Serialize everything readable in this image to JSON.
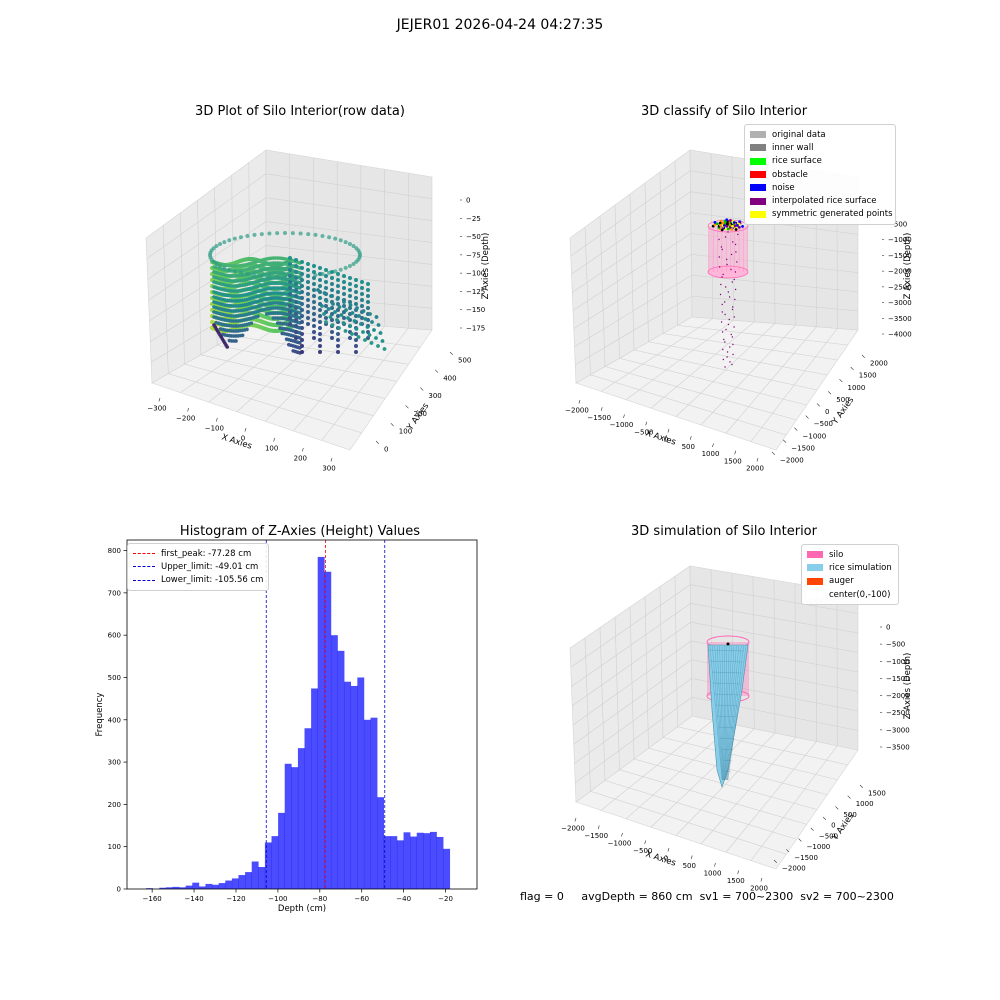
{
  "suptitle": "JEJER01 2026-04-24 04:27:35",
  "panels": {
    "raw": {
      "title": "3D Plot of Silo Interior(row data)",
      "xlabel": "X Axies",
      "ylabel": "Y Axies",
      "zlabel": "Z Axies (Depth)",
      "xticks": [
        "−300",
        "−200",
        "−100",
        "0",
        "100",
        "200",
        "300"
      ],
      "yticks": [
        "0",
        "100",
        "200",
        "300",
        "400",
        "500"
      ],
      "zticks": [
        "0",
        "−25",
        "−50",
        "−75",
        "−100",
        "−125",
        "−150",
        "−175"
      ]
    },
    "classify": {
      "title": "3D classify of Silo Interior",
      "xlabel": "X Axies",
      "ylabel": "Y Axies",
      "zlabel": "Z Axies (Depth)",
      "xticks": [
        "−2000",
        "−1500",
        "−1000",
        "−500",
        "0",
        "500",
        "1000",
        "1500",
        "2000"
      ],
      "yticks": [
        "−2000",
        "−1500",
        "−1000",
        "−500",
        "0",
        "500",
        "1000",
        "1500",
        "2000"
      ],
      "zticks": [
        "−500",
        "−1000",
        "−1500",
        "−2000",
        "−2500",
        "−3000",
        "−3500",
        "−4000"
      ],
      "legend": [
        {
          "label": "original data",
          "color": "#b0b0b0"
        },
        {
          "label": "inner wall",
          "color": "#808080"
        },
        {
          "label": "rice surface",
          "color": "#00ff00"
        },
        {
          "label": "obstacle",
          "color": "#ff0000"
        },
        {
          "label": "noise",
          "color": "#0000ff"
        },
        {
          "label": "interpolated rice surface",
          "color": "#800080"
        },
        {
          "label": "symmetric generated points",
          "color": "#ffff00"
        }
      ]
    },
    "histogram": {
      "title": "Histogram of Z-Axies (Height) Values",
      "xlabel": "Depth (cm)",
      "ylabel": "Frequency",
      "legend": [
        {
          "label": "first_peak: -77.28 cm",
          "color": "#ff0000"
        },
        {
          "label": "Upper_limit: -49.01 cm",
          "color": "#0000cc"
        },
        {
          "label": "Lower_limit: -105.56 cm",
          "color": "#0000cc"
        }
      ]
    },
    "simulation": {
      "title": "3D simulation of Silo Interior",
      "xlabel": "X Axies",
      "ylabel": "Y Axies",
      "zlabel": "Z Axies (Depth)",
      "xticks": [
        "−2000",
        "−1500",
        "−1000",
        "−500",
        "0",
        "500",
        "1000",
        "1500",
        "2000"
      ],
      "yticks": [
        "−2000",
        "−1500",
        "−1000",
        "−500",
        "0",
        "500",
        "1000",
        "1500"
      ],
      "zticks": [
        "0",
        "−500",
        "−1000",
        "−1500",
        "−2000",
        "−2500",
        "−3000",
        "−3500"
      ],
      "legend": [
        {
          "label": "silo",
          "color": "#ff69b4"
        },
        {
          "label": "rice simulation",
          "color": "#87ceeb"
        },
        {
          "label": "auger",
          "color": "#ff4500"
        },
        {
          "label": "center(0,-100)",
          "color": "#ffffff"
        }
      ]
    }
  },
  "status": {
    "flag": "flag = 0",
    "avg_depth": "avgDepth = 860 cm",
    "sv1": "sv1 = 700~2300",
    "sv2": "sv2 = 700~2300"
  },
  "chart_data": [
    {
      "type": "scatter",
      "title": "3D Plot of Silo Interior(row data)",
      "xlabel": "X Axies",
      "ylabel": "Y Axies",
      "zlabel": "Z Axies (Depth)",
      "xlim": [
        -350,
        350
      ],
      "ylim": [
        -50,
        550
      ],
      "zlim": [
        -190,
        0
      ],
      "grid": true
    },
    {
      "type": "scatter",
      "title": "3D classify of Silo Interior",
      "xlim": [
        -2200,
        2100
      ],
      "ylim": [
        -2100,
        2100
      ],
      "zlim": [
        -4100,
        -400
      ],
      "legend_placement": "top-right",
      "grid": true
    },
    {
      "type": "bar",
      "title": "Histogram of Z-Axies (Height) Values",
      "xlabel": "Depth (cm)",
      "ylabel": "Frequency",
      "xlim": [
        -172,
        -5
      ],
      "ylim": [
        0,
        825
      ],
      "xticks": [
        -160,
        -140,
        -120,
        -100,
        -80,
        -60,
        -40,
        -20
      ],
      "yticks": [
        0,
        100,
        200,
        300,
        400,
        500,
        600,
        700,
        800
      ],
      "bin_width": 3.15,
      "bin_start": -162.9,
      "values": [
        2,
        0,
        3,
        4,
        5,
        4,
        8,
        15,
        6,
        12,
        10,
        14,
        20,
        25,
        33,
        40,
        65,
        52,
        110,
        125,
        180,
        296,
        288,
        333,
        380,
        474,
        785,
        750,
        600,
        563,
        490,
        480,
        500,
        400,
        405,
        217,
        125,
        125,
        115,
        134,
        124,
        133,
        132,
        135,
        123,
        95
      ],
      "color": "#0000ff",
      "vlines": [
        {
          "name": "first_peak",
          "x": -77.28,
          "color": "#ff0000"
        },
        {
          "name": "Upper_limit",
          "x": -49.01,
          "color": "#0000cc"
        },
        {
          "name": "Lower_limit",
          "x": -105.56,
          "color": "#0000cc"
        }
      ],
      "legend_placement": "top-left",
      "grid": false
    },
    {
      "type": "area",
      "title": "3D simulation of Silo Interior",
      "xlim": [
        -2100,
        2100
      ],
      "ylim": [
        -2100,
        1900
      ],
      "zlim": [
        -3800,
        200
      ],
      "legend_placement": "top-right",
      "grid": true
    }
  ]
}
